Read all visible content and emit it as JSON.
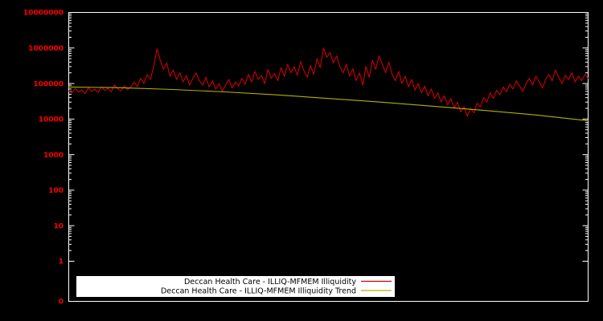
{
  "figure": {
    "bg_color": "#000000",
    "axis_color": "#ffffff",
    "tick_label_color": "#ff0000",
    "legend_bg_color": "#ffffff",
    "legend_text_color": "#000000"
  },
  "chart_data": {
    "type": "line",
    "title": "",
    "xlabel": "",
    "ylabel": "",
    "y_scale": "log",
    "ylim": [
      1,
      10000000
    ],
    "y_tick_labels": [
      "10000000",
      "1000000",
      "100000",
      "10000",
      "1000",
      "100",
      "10",
      "1",
      "0"
    ],
    "grid": false,
    "legend_position": "bottom-center",
    "series": [
      {
        "name": "Deccan Health Care - ILLIQ-MFMEM Illiquidity",
        "color": "#d00000",
        "values": [
          62000,
          55000,
          72000,
          58000,
          66000,
          52000,
          76000,
          60000,
          69000,
          56000,
          81000,
          64000,
          73000,
          59000,
          92000,
          71000,
          63000,
          86000,
          68000,
          79000,
          110000,
          82000,
          140000,
          100000,
          180000,
          130000,
          300000,
          950000,
          450000,
          250000,
          380000,
          160000,
          240000,
          130000,
          200000,
          110000,
          170000,
          90000,
          140000,
          200000,
          120000,
          90000,
          150000,
          80000,
          120000,
          70000,
          100000,
          60000,
          90000,
          130000,
          75000,
          110000,
          85000,
          140000,
          95000,
          180000,
          110000,
          220000,
          130000,
          170000,
          100000,
          250000,
          140000,
          190000,
          120000,
          280000,
          160000,
          350000,
          200000,
          300000,
          170000,
          420000,
          230000,
          150000,
          320000,
          180000,
          500000,
          280000,
          1000000,
          550000,
          750000,
          380000,
          600000,
          300000,
          200000,
          350000,
          160000,
          260000,
          120000,
          200000,
          90000,
          300000,
          150000,
          450000,
          250000,
          600000,
          350000,
          200000,
          400000,
          180000,
          120000,
          220000,
          100000,
          160000,
          80000,
          130000,
          65000,
          100000,
          55000,
          85000,
          45000,
          70000,
          38000,
          55000,
          30000,
          45000,
          25000,
          38000,
          20000,
          30000,
          16000,
          22000,
          12000,
          20000,
          15000,
          28000,
          22000,
          40000,
          30000,
          55000,
          38000,
          65000,
          48000,
          80000,
          58000,
          95000,
          70000,
          120000,
          85000,
          60000,
          100000,
          140000,
          90000,
          160000,
          110000,
          75000,
          130000,
          180000,
          120000,
          240000,
          150000,
          100000,
          170000,
          130000,
          200000,
          110000,
          160000,
          120000,
          180000,
          140000
        ]
      },
      {
        "name": "Deccan Health Care - ILLIQ-MFMEM Illiquidity Trend",
        "color": "#b5b000",
        "values": [
          80000,
          76000,
          68000,
          58000,
          48000,
          38000,
          30000,
          23000,
          17500,
          13000,
          9000
        ]
      }
    ]
  }
}
